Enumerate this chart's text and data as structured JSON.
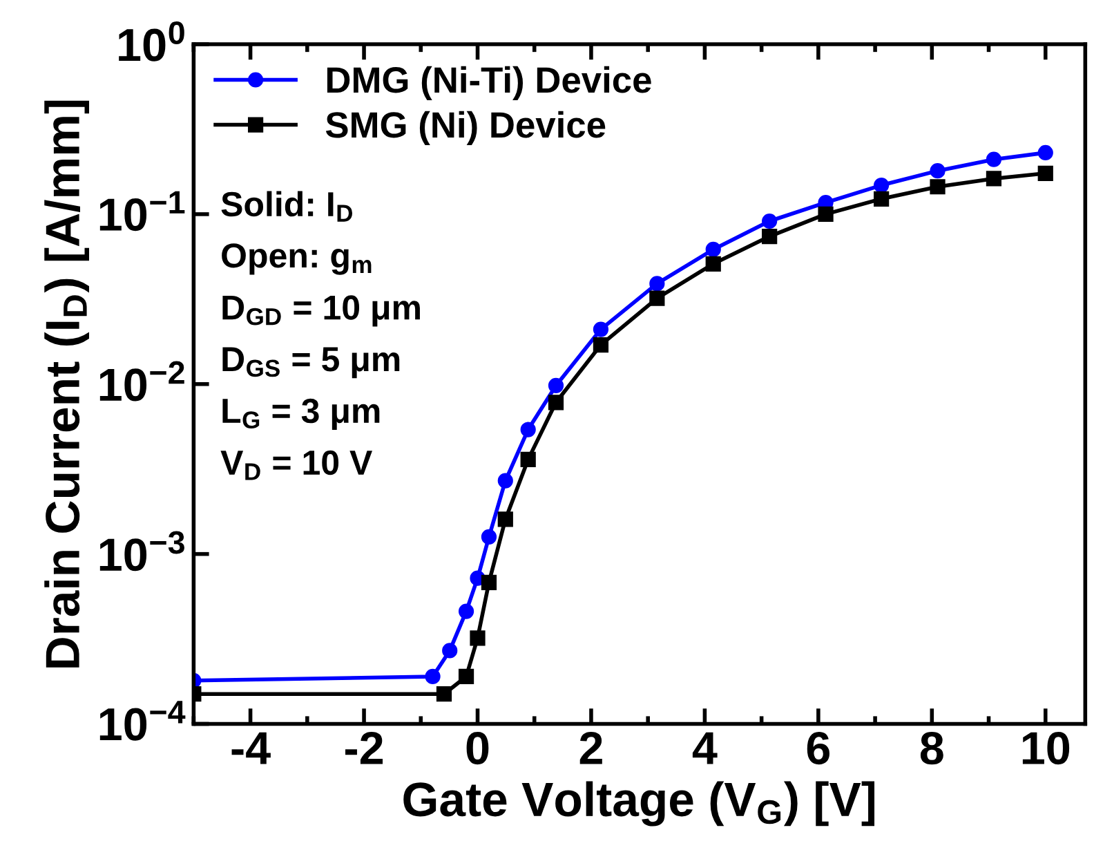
{
  "chart_data": {
    "type": "line",
    "xlabel": "Gate Voltage (V$_{G}$) [V]",
    "ylabel": "Drain Current (I$_{D}$) [A/mm]",
    "log": "y",
    "line_style": "solid",
    "grid": false,
    "legend": "top left",
    "xlim": [
      -5,
      10.7
    ],
    "xticks": [
      -4,
      -2,
      0,
      2,
      4,
      6,
      8,
      10
    ],
    "ylim": [
      0.0001,
      1
    ],
    "yticks": [
      {
        "value": 0.0001,
        "label": "10$^{−4}$"
      },
      {
        "value": 0.001,
        "label": "10$^{−3}$"
      },
      {
        "value": 0.01,
        "label": "10$^{−2}$"
      },
      {
        "value": 0.1,
        "label": "10$^{−1}$"
      },
      {
        "value": 1,
        "label": "10$^{0}$"
      }
    ],
    "series": [
      {
        "name": "DMG (Ni-Ti) Device",
        "color": "#0000ff",
        "marker": "circle",
        "x": [
          -5,
          -0.79,
          -0.49,
          -0.2,
          0,
          0.2,
          0.49,
          0.89,
          1.38,
          2.17,
          3.16,
          4.15,
          5.14,
          6.13,
          7.11,
          8.1,
          9.09,
          10
        ],
        "values": [
          0.00018,
          0.00019,
          0.00027,
          0.00046,
          0.00072,
          0.00126,
          0.0027,
          0.0054,
          0.0098,
          0.021,
          0.039,
          0.062,
          0.091,
          0.117,
          0.148,
          0.18,
          0.21,
          0.23
        ]
      },
      {
        "name": "SMG (Ni) Device",
        "color": "#000000",
        "marker": "square",
        "x": [
          -5,
          -0.59,
          -0.2,
          0,
          0.2,
          0.49,
          0.89,
          1.38,
          2.17,
          3.16,
          4.15,
          5.14,
          6.13,
          7.11,
          8.1,
          9.09,
          10
        ],
        "values": [
          0.00015,
          0.00015,
          0.00019,
          0.00032,
          0.00068,
          0.0016,
          0.0036,
          0.0078,
          0.017,
          0.032,
          0.051,
          0.074,
          0.1,
          0.123,
          0.145,
          0.162,
          0.174
        ]
      }
    ],
    "annotations": [
      "Solid: I$_{D}$",
      "Open: g$_{m}$",
      "D$_{GD}$ = 10 μm",
      "D$_{GS}$ = 5 μm",
      "L$_{G}$ = 3 μm",
      "V$_{D}$ = 10 V"
    ]
  }
}
